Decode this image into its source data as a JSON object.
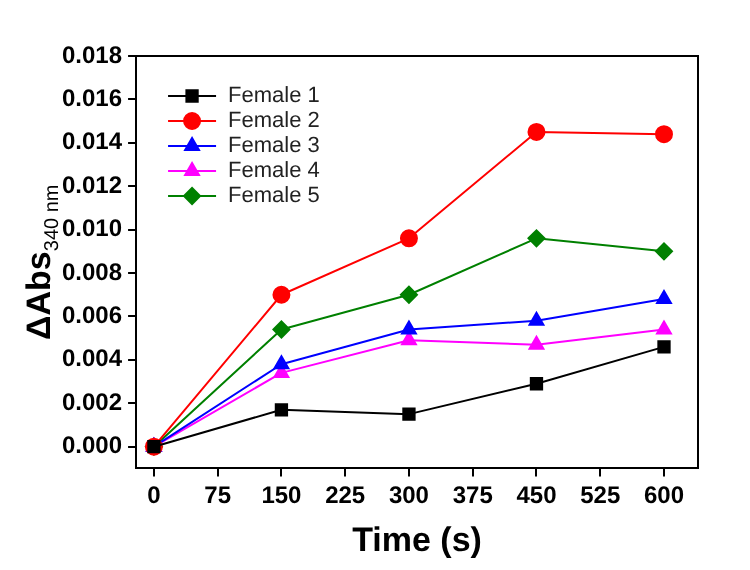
{
  "chart_data": {
    "type": "line",
    "xlabel": "Time (s)",
    "ylabel": "ΔAbs$_{340 nm}$",
    "x": [
      0,
      150,
      300,
      450,
      600
    ],
    "xlim": [
      -21,
      640
    ],
    "xticks": [
      0,
      75,
      150,
      225,
      300,
      375,
      450,
      525,
      600
    ],
    "ylim": [
      -0.001,
      0.018
    ],
    "yticks": [
      {
        "value": 0,
        "label": "0.000"
      },
      {
        "value": 0.002,
        "label": "0.002"
      },
      {
        "value": 0.004,
        "label": "0.004"
      },
      {
        "value": 0.006,
        "label": "0.006"
      },
      {
        "value": 0.008,
        "label": "0.008"
      },
      {
        "value": 0.01,
        "label": "0.010"
      },
      {
        "value": 0.012,
        "label": "0.012"
      },
      {
        "value": 0.014,
        "label": "0.014"
      },
      {
        "value": 0.016,
        "label": "0.016"
      },
      {
        "value": 0.018,
        "label": "0.018"
      }
    ],
    "grid": false,
    "legend": "top left",
    "line_style": "solid",
    "series": [
      {
        "name": "Female 1",
        "color": "#000000",
        "marker": "square",
        "values": [
          0,
          0.0017,
          0.0015,
          0.0029,
          0.0046
        ]
      },
      {
        "name": "Female 2",
        "color": "#ff0000",
        "marker": "circle",
        "values": [
          0,
          0.007,
          0.0096,
          0.0145,
          0.0144
        ]
      },
      {
        "name": "Female 3",
        "color": "#0000ff",
        "marker": "triangle",
        "values": [
          0,
          0.0038,
          0.0054,
          0.0058,
          0.0068
        ]
      },
      {
        "name": "Female 4",
        "color": "#ff00ff",
        "marker": "triangle",
        "values": [
          0,
          0.0034,
          0.0049,
          0.0047,
          0.0054
        ]
      },
      {
        "name": "Female 5",
        "color": "#008000",
        "marker": "diamond",
        "values": [
          0,
          0.0054,
          0.007,
          0.0096,
          0.009
        ]
      }
    ]
  }
}
